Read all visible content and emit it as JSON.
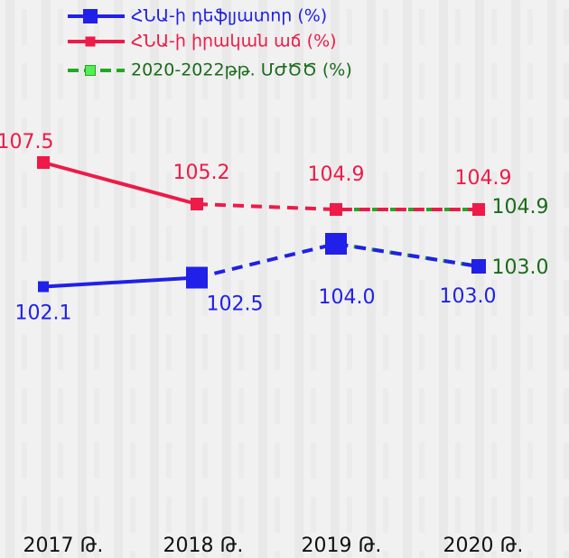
{
  "chart_data": {
    "type": "line",
    "categories": [
      "2017 Թ.",
      "2018 Թ.",
      "2019 Թ.",
      "2020 Թ."
    ],
    "ylim": [
      98,
      111
    ],
    "y2lim": [
      95.5,
      111.75
    ],
    "series": [
      {
        "name": "ՀՆԱ-ի դեֆլյատոր (%)",
        "color": "#2020e8",
        "marker": "square",
        "values": [
          102.1,
          102.5,
          104.0,
          103.0
        ],
        "value_labels": [
          "102.1",
          "102.5",
          "104.0",
          "103.0"
        ]
      },
      {
        "name": "ՀՆԱ-ի իրական աճ (%)",
        "color": "#ee1a48",
        "marker": "square",
        "axis": "y2",
        "values": [
          107.5,
          105.2,
          104.9,
          104.9
        ],
        "value_labels": [
          "107.5",
          "105.2",
          "104.9",
          "104.9"
        ]
      },
      {
        "name": "2020-2022թթ. ՄԺԾԾ (%)",
        "color": "#22a822",
        "axis": "y2",
        "values": [
          null,
          null,
          104.9,
          104.9
        ],
        "value_labels": [
          null,
          null,
          null,
          "104.9"
        ]
      },
      {
        "color": "#22a822",
        "values": [
          null,
          null,
          104.0,
          103.0
        ],
        "value_labels": [
          null,
          null,
          null,
          "103.0"
        ]
      }
    ]
  }
}
